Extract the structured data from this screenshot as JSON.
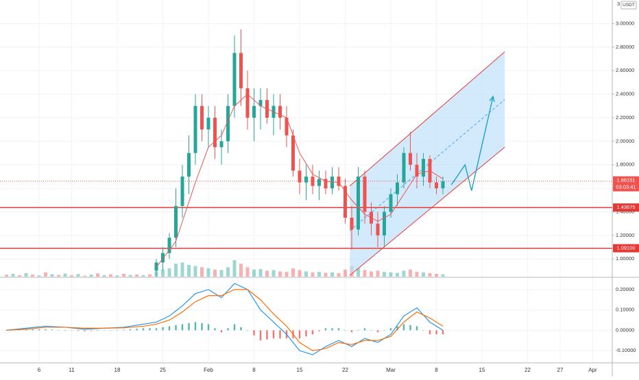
{
  "chart_data": {
    "type": "candlestick",
    "quote_currency": "USDT",
    "price_axis_top_label": "3",
    "price_ylim": [
      0.85,
      3.2
    ],
    "price_ticks": [
      "3.00000",
      "2.80000",
      "2.60000",
      "2.40000",
      "2.20000",
      "2.00000",
      "1.80000",
      "1.60000",
      "1.40000",
      "1.20000",
      "1.00000"
    ],
    "price_tick_values": [
      3.0,
      2.8,
      2.6,
      2.4,
      2.2,
      2.0,
      1.8,
      1.6,
      1.4,
      1.2,
      1.0
    ],
    "x_ticks": [
      "6",
      "11",
      "18",
      "25",
      "Feb",
      "8",
      "15",
      "22",
      "Mar",
      "8",
      "15",
      "22",
      "27",
      "Apr"
    ],
    "x_tick_days": [
      -26,
      -21,
      -14,
      -7,
      0,
      7,
      14,
      21,
      28,
      35,
      42,
      49,
      54,
      59
    ],
    "x_range_days": [
      -32,
      62
    ],
    "current_price": {
      "price_label": "1.66151",
      "countdown_label": "03:03:41",
      "value": 1.66151
    },
    "horizontal_levels": [
      {
        "label": "1.43675",
        "value": 1.43675
      },
      {
        "label": "1.09100",
        "value": 1.091
      }
    ],
    "channel": {
      "start_day": 21.7,
      "end_day": 45.5,
      "upper": [
        1.62,
        2.76
      ],
      "lower": [
        0.86,
        1.95
      ],
      "mid": [
        1.24,
        2.355
      ]
    },
    "projection_arrow": [
      [
        37.3,
        1.63
      ],
      [
        39.4,
        1.8
      ],
      [
        40.4,
        1.58
      ],
      [
        43.7,
        2.38
      ]
    ],
    "series": [
      {
        "name": "candles",
        "points": [
          {
            "day": -8.0,
            "open": 0.9,
            "high": 1.0,
            "low": 0.85,
            "close": 0.97
          },
          {
            "day": -7.0,
            "open": 0.97,
            "high": 1.1,
            "low": 0.9,
            "close": 1.05
          },
          {
            "day": -6.0,
            "open": 1.05,
            "high": 1.22,
            "low": 1.0,
            "close": 1.18
          },
          {
            "day": -5.0,
            "open": 1.18,
            "high": 1.6,
            "low": 1.1,
            "close": 1.45
          },
          {
            "day": -4.0,
            "open": 1.45,
            "high": 1.8,
            "low": 1.35,
            "close": 1.7
          },
          {
            "day": -3.0,
            "open": 1.7,
            "high": 2.05,
            "low": 1.55,
            "close": 1.9
          },
          {
            "day": -2.0,
            "open": 1.9,
            "high": 2.4,
            "low": 1.8,
            "close": 2.3
          },
          {
            "day": -1.0,
            "open": 2.3,
            "high": 2.4,
            "low": 2.0,
            "close": 2.1
          },
          {
            "day": 0.0,
            "open": 2.1,
            "high": 2.3,
            "low": 1.95,
            "close": 2.2
          },
          {
            "day": 1.0,
            "open": 2.2,
            "high": 2.3,
            "low": 1.85,
            "close": 1.95
          },
          {
            "day": 2.0,
            "open": 1.95,
            "high": 2.1,
            "low": 1.8,
            "close": 2.0
          },
          {
            "day": 3.0,
            "open": 2.0,
            "high": 2.4,
            "low": 1.9,
            "close": 2.3
          },
          {
            "day": 4.0,
            "open": 2.3,
            "high": 2.9,
            "low": 2.2,
            "close": 2.75
          },
          {
            "day": 5.0,
            "open": 2.75,
            "high": 2.95,
            "low": 2.3,
            "close": 2.45
          },
          {
            "day": 6.0,
            "open": 2.45,
            "high": 2.6,
            "low": 2.1,
            "close": 2.2
          },
          {
            "day": 7.0,
            "open": 2.2,
            "high": 2.45,
            "low": 2.0,
            "close": 2.3
          },
          {
            "day": 8.0,
            "open": 2.3,
            "high": 2.45,
            "low": 2.1,
            "close": 2.35
          },
          {
            "day": 9.0,
            "open": 2.35,
            "high": 2.45,
            "low": 2.15,
            "close": 2.2
          },
          {
            "day": 10.0,
            "open": 2.2,
            "high": 2.4,
            "low": 2.05,
            "close": 2.3
          },
          {
            "day": 11.0,
            "open": 2.3,
            "high": 2.4,
            "low": 2.1,
            "close": 2.2
          },
          {
            "day": 12.0,
            "open": 2.2,
            "high": 2.3,
            "low": 1.95,
            "close": 2.05
          },
          {
            "day": 13.0,
            "open": 2.05,
            "high": 2.1,
            "low": 1.7,
            "close": 1.75
          },
          {
            "day": 14.0,
            "open": 1.75,
            "high": 1.85,
            "low": 1.55,
            "close": 1.65
          },
          {
            "day": 15.0,
            "open": 1.65,
            "high": 1.8,
            "low": 1.5,
            "close": 1.7
          },
          {
            "day": 16.0,
            "open": 1.7,
            "high": 1.8,
            "low": 1.55,
            "close": 1.62
          },
          {
            "day": 17.0,
            "open": 1.62,
            "high": 1.75,
            "low": 1.5,
            "close": 1.68
          },
          {
            "day": 18.0,
            "open": 1.68,
            "high": 1.75,
            "low": 1.55,
            "close": 1.6
          },
          {
            "day": 19.0,
            "open": 1.6,
            "high": 1.78,
            "low": 1.55,
            "close": 1.7
          },
          {
            "day": 20.0,
            "open": 1.7,
            "high": 1.78,
            "low": 1.58,
            "close": 1.62
          },
          {
            "day": 21.0,
            "open": 1.62,
            "high": 1.68,
            "low": 1.3,
            "close": 1.35
          },
          {
            "day": 22.0,
            "open": 1.35,
            "high": 1.45,
            "low": 1.08,
            "close": 1.25
          },
          {
            "day": 23.0,
            "open": 1.25,
            "high": 1.78,
            "low": 1.2,
            "close": 1.7
          },
          {
            "day": 24.0,
            "open": 1.7,
            "high": 1.75,
            "low": 1.3,
            "close": 1.4
          },
          {
            "day": 25.0,
            "open": 1.4,
            "high": 1.48,
            "low": 1.2,
            "close": 1.3
          },
          {
            "day": 26.0,
            "open": 1.3,
            "high": 1.4,
            "low": 1.1,
            "close": 1.2
          },
          {
            "day": 27.0,
            "open": 1.2,
            "high": 1.45,
            "low": 1.1,
            "close": 1.4
          },
          {
            "day": 28.0,
            "open": 1.4,
            "high": 1.6,
            "low": 1.35,
            "close": 1.55
          },
          {
            "day": 29.0,
            "open": 1.55,
            "high": 1.72,
            "low": 1.45,
            "close": 1.65
          },
          {
            "day": 30.0,
            "open": 1.65,
            "high": 1.95,
            "low": 1.6,
            "close": 1.9
          },
          {
            "day": 31.0,
            "open": 1.9,
            "high": 2.08,
            "low": 1.75,
            "close": 1.8
          },
          {
            "day": 32.0,
            "open": 1.8,
            "high": 1.9,
            "low": 1.6,
            "close": 1.7
          },
          {
            "day": 33.0,
            "open": 1.7,
            "high": 1.9,
            "low": 1.62,
            "close": 1.85
          },
          {
            "day": 34.0,
            "open": 1.85,
            "high": 1.88,
            "low": 1.6,
            "close": 1.65
          },
          {
            "day": 35.0,
            "open": 1.65,
            "high": 1.7,
            "low": 1.55,
            "close": 1.6
          },
          {
            "day": 36.0,
            "open": 1.6,
            "high": 1.7,
            "low": 1.55,
            "close": 1.66
          }
        ]
      },
      {
        "name": "moving_average",
        "points": [
          [
            -8,
            0.93
          ],
          [
            -5,
            1.15
          ],
          [
            -2,
            1.65
          ],
          [
            0,
            1.95
          ],
          [
            2,
            2.05
          ],
          [
            4,
            2.3
          ],
          [
            6,
            2.4
          ],
          [
            8,
            2.3
          ],
          [
            10,
            2.25
          ],
          [
            12,
            2.2
          ],
          [
            14,
            1.9
          ],
          [
            16,
            1.72
          ],
          [
            18,
            1.66
          ],
          [
            20,
            1.65
          ],
          [
            22,
            1.5
          ],
          [
            24,
            1.38
          ],
          [
            26,
            1.32
          ],
          [
            28,
            1.38
          ],
          [
            30,
            1.55
          ],
          [
            32,
            1.72
          ],
          [
            34,
            1.75
          ],
          [
            36,
            1.68
          ]
        ]
      },
      {
        "name": "volume",
        "points": [
          [
            -31,
            0.08
          ],
          [
            -30,
            0.12
          ],
          [
            -29,
            0.06
          ],
          [
            -28,
            0.15
          ],
          [
            -27,
            0.09
          ],
          [
            -26,
            0.05
          ],
          [
            -25,
            0.18
          ],
          [
            -24,
            0.1
          ],
          [
            -23,
            0.07
          ],
          [
            -22,
            0.13
          ],
          [
            -21,
            0.06
          ],
          [
            -20,
            0.11
          ],
          [
            -19,
            0.04
          ],
          [
            -18,
            0.09
          ],
          [
            -17,
            0.14
          ],
          [
            -16,
            0.06
          ],
          [
            -15,
            0.1
          ],
          [
            -14,
            0.05
          ],
          [
            -13,
            0.12
          ],
          [
            -12,
            0.07
          ],
          [
            -11,
            0.09
          ],
          [
            -10,
            0.06
          ],
          [
            -9,
            0.1
          ],
          [
            -8,
            0.22
          ],
          [
            -7,
            0.3
          ],
          [
            -6,
            0.35
          ],
          [
            -5,
            0.55
          ],
          [
            -4,
            0.6
          ],
          [
            -3,
            0.5
          ],
          [
            -2,
            0.45
          ],
          [
            -1,
            0.4
          ],
          [
            0,
            0.35
          ],
          [
            1,
            0.3
          ],
          [
            2,
            0.28
          ],
          [
            3,
            0.4
          ],
          [
            4,
            0.7
          ],
          [
            5,
            0.55
          ],
          [
            6,
            0.4
          ],
          [
            7,
            0.3
          ],
          [
            8,
            0.32
          ],
          [
            9,
            0.25
          ],
          [
            10,
            0.28
          ],
          [
            11,
            0.22
          ],
          [
            12,
            0.2
          ],
          [
            13,
            0.35
          ],
          [
            14,
            0.28
          ],
          [
            15,
            0.22
          ],
          [
            16,
            0.18
          ],
          [
            17,
            0.2
          ],
          [
            18,
            0.16
          ],
          [
            19,
            0.18
          ],
          [
            20,
            0.15
          ],
          [
            21,
            0.3
          ],
          [
            22,
            0.45
          ],
          [
            23,
            0.35
          ],
          [
            24,
            0.28
          ],
          [
            25,
            0.22
          ],
          [
            26,
            0.25
          ],
          [
            27,
            0.2
          ],
          [
            28,
            0.18
          ],
          [
            29,
            0.16
          ],
          [
            30,
            0.25
          ],
          [
            31,
            0.3
          ],
          [
            32,
            0.2
          ],
          [
            33,
            0.18
          ],
          [
            34,
            0.15
          ],
          [
            35,
            0.12
          ],
          [
            36,
            0.1
          ]
        ]
      },
      {
        "name": "macd",
        "points": [
          [
            -31,
            0.0
          ],
          [
            -28,
            0.01
          ],
          [
            -25,
            0.02
          ],
          [
            -22,
            0.015
          ],
          [
            -19,
            0.005
          ],
          [
            -16,
            0.01
          ],
          [
            -13,
            0.015
          ],
          [
            -10,
            0.03
          ],
          [
            -8,
            0.04
          ],
          [
            -6,
            0.07
          ],
          [
            -4,
            0.12
          ],
          [
            -2,
            0.18
          ],
          [
            0,
            0.2
          ],
          [
            2,
            0.16
          ],
          [
            4,
            0.23
          ],
          [
            6,
            0.2
          ],
          [
            8,
            0.1
          ],
          [
            10,
            0.04
          ],
          [
            12,
            -0.02
          ],
          [
            14,
            -0.1
          ],
          [
            16,
            -0.12
          ],
          [
            18,
            -0.08
          ],
          [
            20,
            -0.05
          ],
          [
            22,
            -0.08
          ],
          [
            24,
            -0.04
          ],
          [
            26,
            -0.06
          ],
          [
            28,
            -0.02
          ],
          [
            30,
            0.07
          ],
          [
            32,
            0.11
          ],
          [
            34,
            0.04
          ],
          [
            36,
            0.0
          ]
        ]
      },
      {
        "name": "signal",
        "points": [
          [
            -31,
            0.0
          ],
          [
            -28,
            0.005
          ],
          [
            -25,
            0.015
          ],
          [
            -22,
            0.015
          ],
          [
            -19,
            0.01
          ],
          [
            -16,
            0.01
          ],
          [
            -13,
            0.012
          ],
          [
            -10,
            0.02
          ],
          [
            -8,
            0.03
          ],
          [
            -6,
            0.05
          ],
          [
            -4,
            0.09
          ],
          [
            -2,
            0.14
          ],
          [
            0,
            0.17
          ],
          [
            2,
            0.17
          ],
          [
            4,
            0.2
          ],
          [
            6,
            0.2
          ],
          [
            8,
            0.15
          ],
          [
            10,
            0.08
          ],
          [
            12,
            0.02
          ],
          [
            14,
            -0.06
          ],
          [
            16,
            -0.1
          ],
          [
            18,
            -0.09
          ],
          [
            20,
            -0.06
          ],
          [
            22,
            -0.07
          ],
          [
            24,
            -0.05
          ],
          [
            26,
            -0.05
          ],
          [
            28,
            -0.03
          ],
          [
            30,
            0.04
          ],
          [
            32,
            0.09
          ],
          [
            34,
            0.06
          ],
          [
            36,
            0.02
          ]
        ]
      }
    ],
    "osc_ylim": [
      -0.16,
      0.26
    ],
    "osc_ticks": [
      "0.20000",
      "0.10000",
      "0.00000",
      "-0.10000"
    ],
    "osc_tick_values": [
      0.2,
      0.1,
      0.0,
      -0.1
    ]
  },
  "colors": {
    "up": "#26a69a",
    "down": "#ef5350",
    "level_line": "#e53935",
    "level_label_bg": "#e53935",
    "price_label_bg": "#ef5350",
    "channel_fill": "#bbdefb",
    "channel_edge": "#e53935",
    "channel_mid": "#42a5f5",
    "projection": "#26a6c9",
    "macd": "#2196f3",
    "signal": "#ff6d00",
    "axis_text": "#333333",
    "grid": "#f0f3fa"
  },
  "icons": {
    "currency_badge": "usdt-badge"
  }
}
